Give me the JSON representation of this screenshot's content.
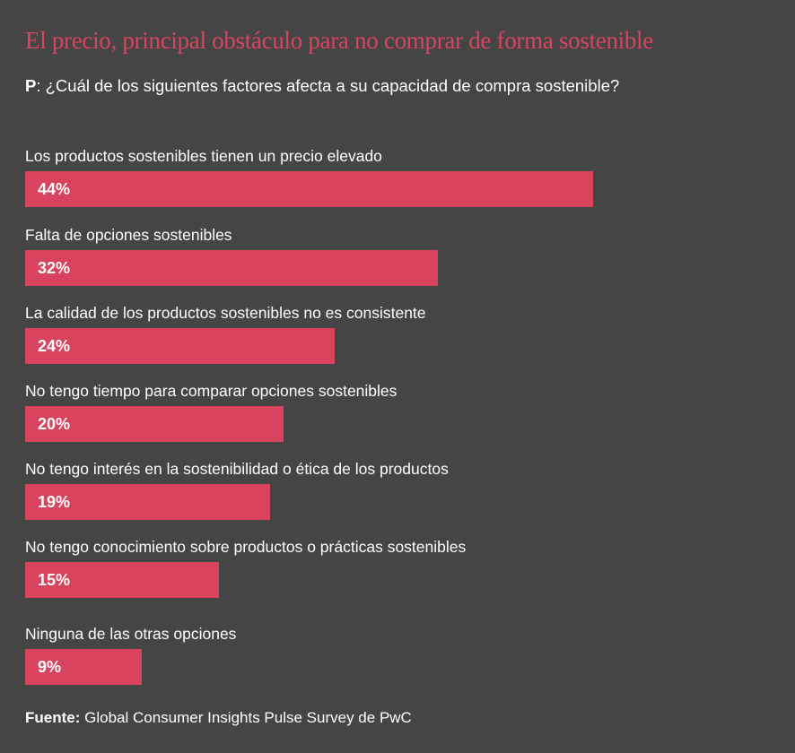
{
  "chart_data": {
    "type": "bar",
    "orientation": "horizontal",
    "title": "El precio, principal obstáculo para no comprar de forma sostenible",
    "question_prefix": "P",
    "question": ": ¿Cuál de los siguientes factores afecta a su capacidad de compra sostenible?",
    "categories": [
      "Los productos sostenibles tienen un precio elevado",
      "Falta de opciones sostenibles",
      "La calidad de los productos sostenibles no es consistente",
      "No tengo tiempo para comparar opciones sostenibles",
      "No tengo interés en la sostenibilidad o ética de los productos",
      "No tengo conocimiento sobre productos o prácticas sostenibles",
      "Ninguna de las otras opciones"
    ],
    "values": [
      44,
      32,
      24,
      20,
      19,
      15,
      9
    ],
    "value_labels": [
      "44%",
      "32%",
      "24%",
      "20%",
      "19%",
      "15%",
      "9%"
    ],
    "unit": "%",
    "source_label": "Fuente:",
    "source": " Global Consumer Insights Pulse Survey de PwC",
    "colors": {
      "bar": "#d9435e",
      "title": "#d9455f",
      "background": "#454545"
    }
  }
}
